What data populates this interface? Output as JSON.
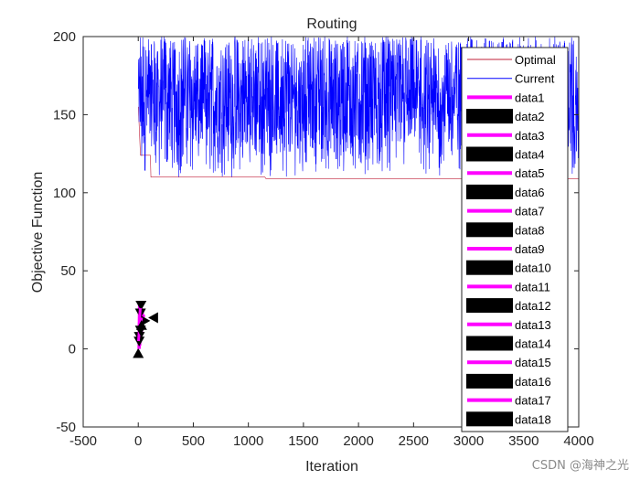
{
  "chart_data": {
    "type": "line",
    "title": "Routing",
    "xlabel": "Iteration",
    "ylabel": "Objective Function",
    "xlim": [
      -500,
      4000
    ],
    "ylim": [
      -50,
      200
    ],
    "xticks": [
      -500,
      0,
      500,
      1000,
      1500,
      2000,
      2500,
      3000,
      3500,
      4000
    ],
    "yticks": [
      -50,
      0,
      50,
      100,
      150,
      200
    ],
    "grid": false,
    "legend_position": "top-right",
    "series": [
      {
        "name": "Optimal",
        "color": "#c0203a",
        "style": "step",
        "points": [
          [
            1,
            155
          ],
          [
            20,
            124
          ],
          [
            110,
            124
          ],
          [
            115,
            110
          ],
          [
            1150,
            110
          ],
          [
            1160,
            109
          ],
          [
            4000,
            109
          ]
        ]
      },
      {
        "name": "Current",
        "color": "#0000ff",
        "style": "noise",
        "x_range": [
          1,
          4000
        ],
        "y_band": [
          110,
          200
        ],
        "y_center": 160
      }
    ],
    "marker_series": [
      {
        "name": "data1",
        "color": "#ff00ff",
        "marker": "line",
        "points": [
          [
            5,
            0
          ],
          [
            10,
            30
          ]
        ]
      },
      {
        "name": "data2",
        "color": "#000000",
        "marker": "triangle-up",
        "points": [
          [
            0,
            -3
          ]
        ]
      },
      {
        "name": "data3",
        "color": "#ff00ff",
        "marker": "line",
        "points": [
          [
            10,
            0
          ],
          [
            20,
            28
          ]
        ]
      },
      {
        "name": "data4",
        "color": "#000000",
        "marker": "triangle-down",
        "points": [
          [
            25,
            28
          ]
        ]
      },
      {
        "name": "data5",
        "color": "#ff00ff",
        "marker": "line",
        "points": [
          [
            15,
            2
          ],
          [
            30,
            26
          ]
        ]
      },
      {
        "name": "data6",
        "color": "#000000",
        "marker": "triangle-left",
        "points": [
          [
            140,
            20
          ]
        ]
      },
      {
        "name": "data7",
        "color": "#ff00ff",
        "marker": "line",
        "points": [
          [
            20,
            5
          ],
          [
            40,
            24
          ]
        ]
      },
      {
        "name": "data8",
        "color": "#000000",
        "marker": "triangle-down",
        "points": [
          [
            20,
            23
          ]
        ]
      },
      {
        "name": "data9",
        "color": "#ff00ff",
        "marker": "line",
        "points": [
          [
            25,
            8
          ],
          [
            50,
            22
          ]
        ]
      },
      {
        "name": "data10",
        "color": "#000000",
        "marker": "triangle-right",
        "points": [
          [
            60,
            18
          ]
        ]
      },
      {
        "name": "data11",
        "color": "#ff00ff",
        "marker": "line",
        "points": [
          [
            10,
            10
          ],
          [
            30,
            20
          ]
        ]
      },
      {
        "name": "data12",
        "color": "#000000",
        "marker": "triangle-down",
        "points": [
          [
            10,
            8
          ]
        ]
      },
      {
        "name": "data13",
        "color": "#ff00ff",
        "marker": "line",
        "points": [
          [
            5,
            12
          ],
          [
            25,
            18
          ]
        ]
      },
      {
        "name": "data14",
        "color": "#000000",
        "marker": "triangle-down",
        "points": [
          [
            8,
            5
          ]
        ]
      },
      {
        "name": "data15",
        "color": "#ff00ff",
        "marker": "line",
        "points": [
          [
            8,
            15
          ],
          [
            18,
            26
          ]
        ]
      },
      {
        "name": "data16",
        "color": "#000000",
        "marker": "triangle-up",
        "points": [
          [
            30,
            15
          ]
        ]
      },
      {
        "name": "data17",
        "color": "#ff00ff",
        "marker": "line",
        "points": [
          [
            2,
            5
          ],
          [
            12,
            14
          ]
        ]
      },
      {
        "name": "data18",
        "color": "#000000",
        "marker": "triangle-down",
        "points": [
          [
            20,
            12
          ]
        ]
      }
    ]
  },
  "watermark": "CSDN @海神之光"
}
